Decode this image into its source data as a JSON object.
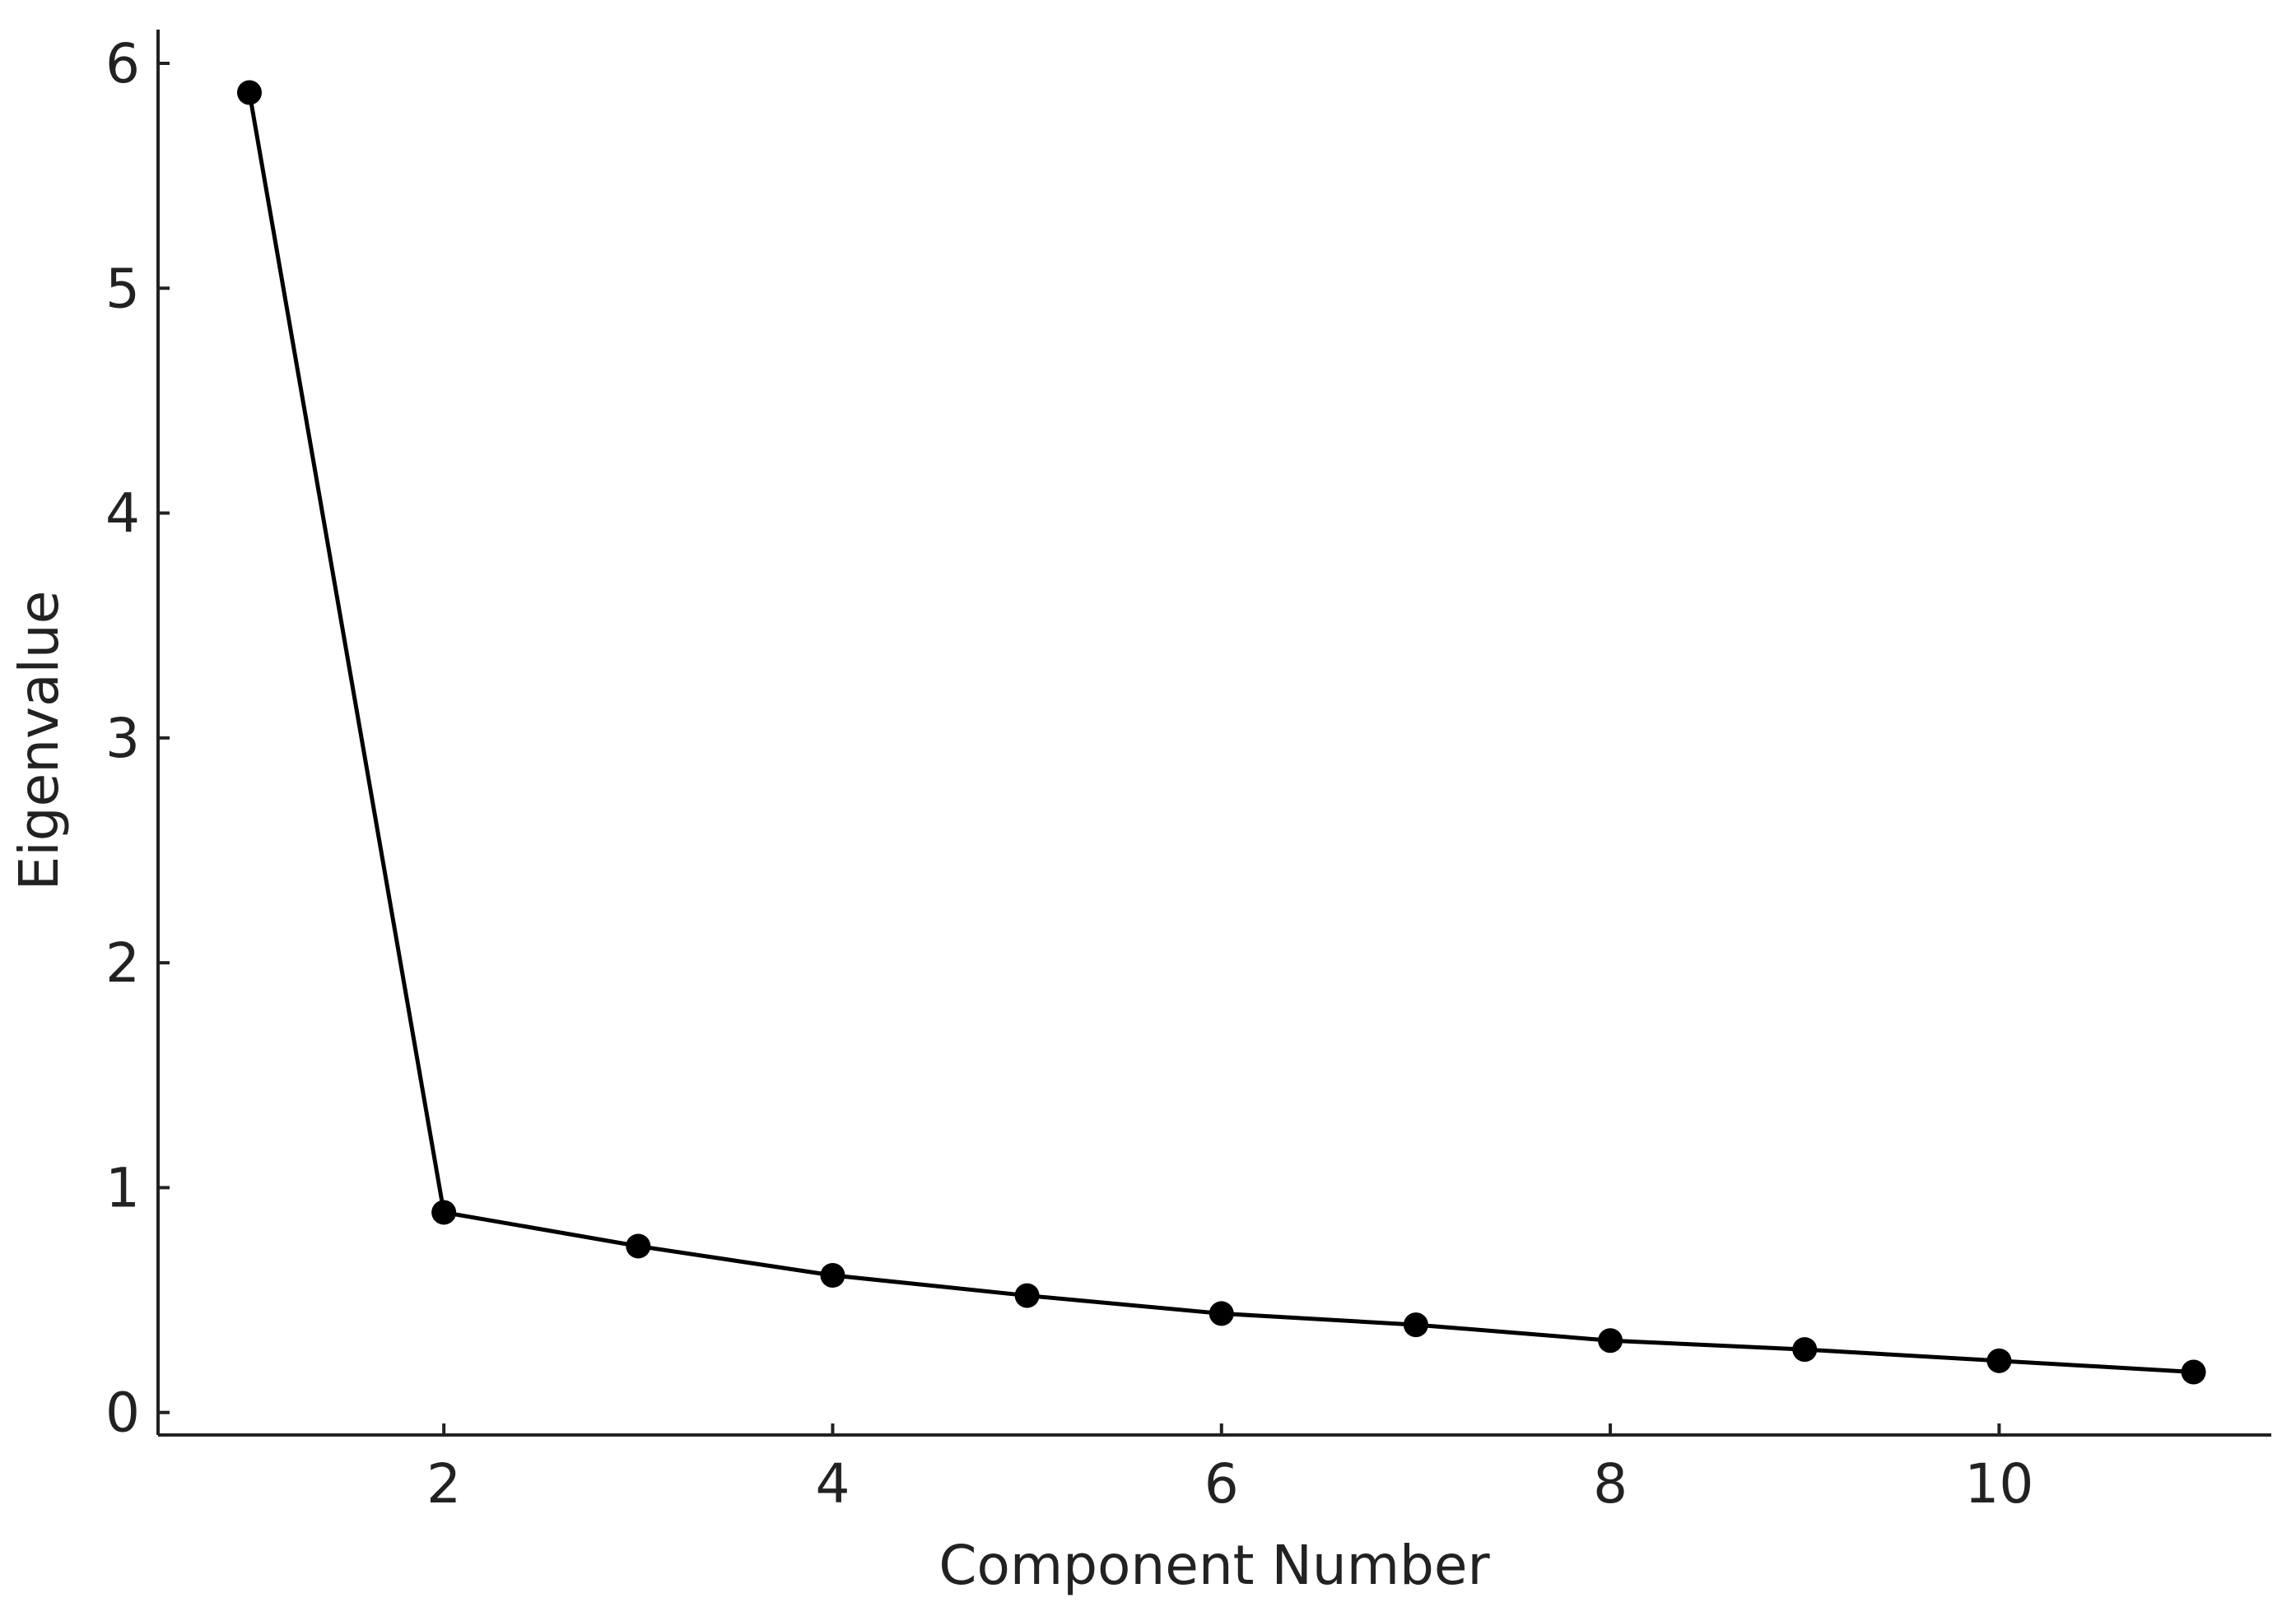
{
  "chart_data": {
    "type": "line",
    "x_label": "Component Number",
    "y_label": "Eigenvalue",
    "x": [
      1,
      2,
      3,
      4,
      5,
      6,
      7,
      8,
      9,
      10,
      11
    ],
    "series": [
      {
        "name": "Eigenvalue",
        "color": "#000000",
        "values": [
          5.87,
          0.89,
          0.74,
          0.61,
          0.52,
          0.44,
          0.39,
          0.32,
          0.28,
          0.23,
          0.18
        ]
      }
    ],
    "xlim": [
      0.53,
      11.4
    ],
    "ylim": [
      -0.1,
      6.15
    ],
    "xticks": [
      2,
      4,
      6,
      8,
      10
    ],
    "yticks": [
      0,
      1,
      2,
      3,
      4,
      5,
      6
    ],
    "grid": false,
    "markers": true
  }
}
